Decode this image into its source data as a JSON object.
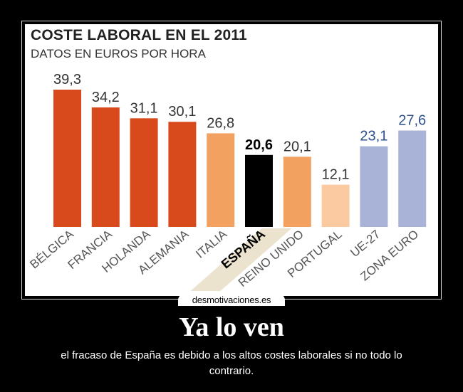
{
  "poster": {
    "title": "Ya lo ven",
    "caption": "el fracaso de España es debido a los altos costes laborales si no todo lo contrario.",
    "watermark": "desmotivaciones.es"
  },
  "chart_data": {
    "type": "bar",
    "title": "COSTE LABORAL EN EL 2011",
    "subtitle": "DATOS EN EUROS POR HORA",
    "categories": [
      "BÉLGICA",
      "FRANCIA",
      "HOLANDA",
      "ALEMANIA",
      "ITALIA",
      "ESPAÑA",
      "REINO UNIDO",
      "PORTUGAL",
      "UE-27",
      "ZONA EURO"
    ],
    "values": [
      39.3,
      34.2,
      31.1,
      30.1,
      26.8,
      20.6,
      20.1,
      12.1,
      23.1,
      27.6
    ],
    "value_labels": [
      "39,3",
      "34,2",
      "31,1",
      "30,1",
      "26,8",
      "20,6",
      "20,1",
      "12,1",
      "23,1",
      "27,6"
    ],
    "bar_colors": [
      "#d84a1b",
      "#d84a1b",
      "#d84a1b",
      "#d84a1b",
      "#f2a161",
      "#000000",
      "#f2a161",
      "#fbcaa0",
      "#a9b3d8",
      "#a9b3d8"
    ],
    "label_colors": [
      "#333333",
      "#333333",
      "#333333",
      "#333333",
      "#333333",
      "#000000",
      "#333333",
      "#333333",
      "#2c4f8c",
      "#2c4f8c"
    ],
    "highlight": "ESPAÑA",
    "ylim": [
      0,
      40
    ],
    "grid": false,
    "legend": "none"
  }
}
